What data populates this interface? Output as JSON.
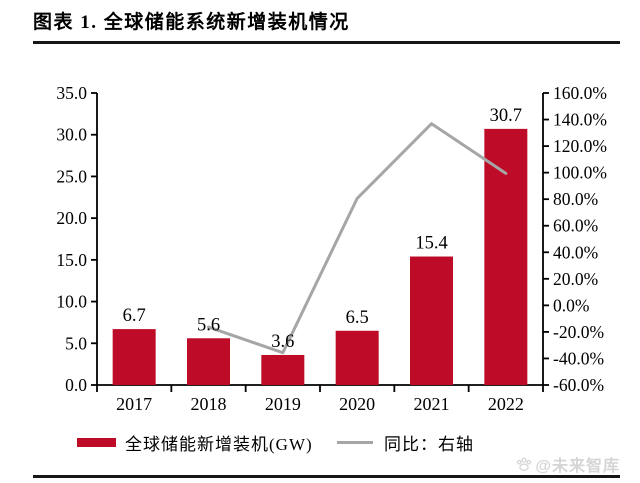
{
  "page": {
    "title": "图表 1. 全球储能系统新增装机情况",
    "watermark": "@未来智库"
  },
  "legend": {
    "bar_label": "全球储能新增装机(GW)",
    "line_label": "同比：右轴"
  },
  "colors": {
    "bar": "#BE0B28",
    "line": "#A6A6A6",
    "axis": "#000000",
    "rule": "#161616",
    "watermark": "#D5D5D5"
  },
  "chart_data": {
    "type": "bar",
    "subtype": "bar+line-dual-axis",
    "title": "图表 1. 全球储能系统新增装机情况",
    "categories": [
      "2017",
      "2018",
      "2019",
      "2020",
      "2021",
      "2022"
    ],
    "series": [
      {
        "name": "全球储能新增装机(GW)",
        "type": "bar",
        "axis": "left",
        "values": [
          6.7,
          5.6,
          3.6,
          6.5,
          15.4,
          30.7
        ],
        "labels": [
          "6.7",
          "5.6",
          "3.6",
          "6.5",
          "15.4",
          "30.7"
        ]
      },
      {
        "name": "同比：右轴",
        "type": "line",
        "axis": "right",
        "values": [
          null,
          -16.4,
          -35.7,
          80.6,
          136.9,
          99.4
        ]
      }
    ],
    "left_axis": {
      "min": 0,
      "max": 35,
      "step": 5,
      "tick_labels": [
        "35.0",
        "30.0",
        "25.0",
        "20.0",
        "15.0",
        "10.0",
        "5.0",
        "0.0"
      ]
    },
    "right_axis": {
      "min": -60,
      "max": 160,
      "step": 20,
      "tick_labels": [
        "160.0%",
        "140.0%",
        "120.0%",
        "100.0%",
        "80.0%",
        "60.0%",
        "40.0%",
        "20.0%",
        "0.0%",
        "-20.0%",
        "-40.0%",
        "-60.0%"
      ]
    },
    "grid": false,
    "legend_position": "bottom",
    "xlabel": "",
    "ylabel_left": "GW",
    "ylabel_right": "%"
  }
}
